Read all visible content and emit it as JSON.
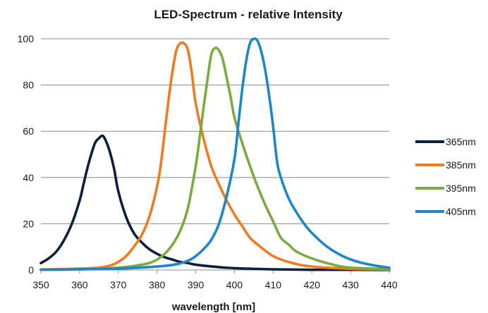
{
  "chart_data": {
    "type": "line",
    "title": "LED-Spectrum - relative Intensity",
    "xlabel": "wavelength [nm]",
    "ylabel": "",
    "xlim": [
      350,
      440
    ],
    "ylim": [
      0,
      100
    ],
    "xticks": [
      350,
      360,
      370,
      380,
      390,
      400,
      410,
      420,
      430,
      440
    ],
    "yticks": [
      0,
      20,
      40,
      60,
      80,
      100
    ],
    "grid": "horizontal",
    "legend_position": "right",
    "series": [
      {
        "name": "365nm",
        "color": "#0d1f3f",
        "x": [
          350,
          352,
          354,
          356,
          358,
          360,
          361,
          362,
          363,
          364,
          365,
          366,
          367,
          368,
          369,
          370,
          372,
          374,
          376,
          378,
          380,
          382,
          384,
          386,
          388,
          390,
          395,
          400,
          410,
          420,
          430,
          440
        ],
        "y": [
          3,
          5,
          8,
          13,
          20,
          30,
          37,
          44,
          50,
          55,
          57,
          58,
          55,
          50,
          43,
          34,
          23,
          16,
          12,
          9,
          7,
          5.5,
          4.5,
          3.5,
          3,
          2.3,
          1.4,
          0.8,
          0.3,
          0.1,
          0.1,
          0
        ]
      },
      {
        "name": "385nm",
        "color": "#f07a20",
        "x": [
          350,
          360,
          365,
          368,
          370,
          372,
          374,
          376,
          378,
          380,
          381,
          382,
          383,
          384,
          385,
          386,
          387,
          388,
          389,
          390,
          392,
          394,
          396,
          398,
          400,
          402,
          404,
          406,
          410,
          415,
          420,
          430,
          440
        ],
        "y": [
          0.2,
          0.6,
          1,
          2,
          3.5,
          6,
          10,
          15,
          23,
          36,
          46,
          60,
          74,
          86,
          95,
          98,
          98,
          95,
          85,
          72,
          57,
          45,
          37,
          30,
          24,
          19,
          14,
          11,
          6,
          3,
          1.5,
          0.5,
          0.2
        ]
      },
      {
        "name": "395nm",
        "color": "#7aab3e",
        "x": [
          350,
          360,
          370,
          375,
          378,
          380,
          382,
          384,
          386,
          388,
          390,
          391,
          392,
          393,
          394,
          395,
          396,
          397,
          398,
          399,
          400,
          402,
          404,
          406,
          408,
          410,
          412,
          414,
          416,
          420,
          425,
          430,
          440
        ],
        "y": [
          0.1,
          0.3,
          1,
          2,
          3,
          4.5,
          7,
          11,
          17,
          27,
          45,
          57,
          70,
          82,
          93,
          96,
          95,
          91,
          83,
          75,
          66,
          55,
          45,
          36,
          28,
          21,
          14,
          11,
          8,
          5,
          2.5,
          1,
          0.4
        ]
      },
      {
        "name": "405nm",
        "color": "#1d86c8",
        "x": [
          350,
          360,
          370,
          380,
          385,
          388,
          390,
          392,
          394,
          396,
          398,
          400,
          401,
          402,
          403,
          404,
          405,
          406,
          407,
          408,
          409,
          410,
          411,
          412,
          414,
          416,
          418,
          420,
          424,
          428,
          432,
          436,
          440
        ],
        "y": [
          0.1,
          0.3,
          0.6,
          1.5,
          2.5,
          4,
          6,
          9,
          13,
          20,
          32,
          48,
          63,
          78,
          90,
          98,
          100,
          99,
          94,
          86,
          75,
          62,
          47,
          40,
          31,
          25,
          20,
          16,
          10,
          6,
          3.5,
          2,
          1
        ]
      }
    ]
  }
}
